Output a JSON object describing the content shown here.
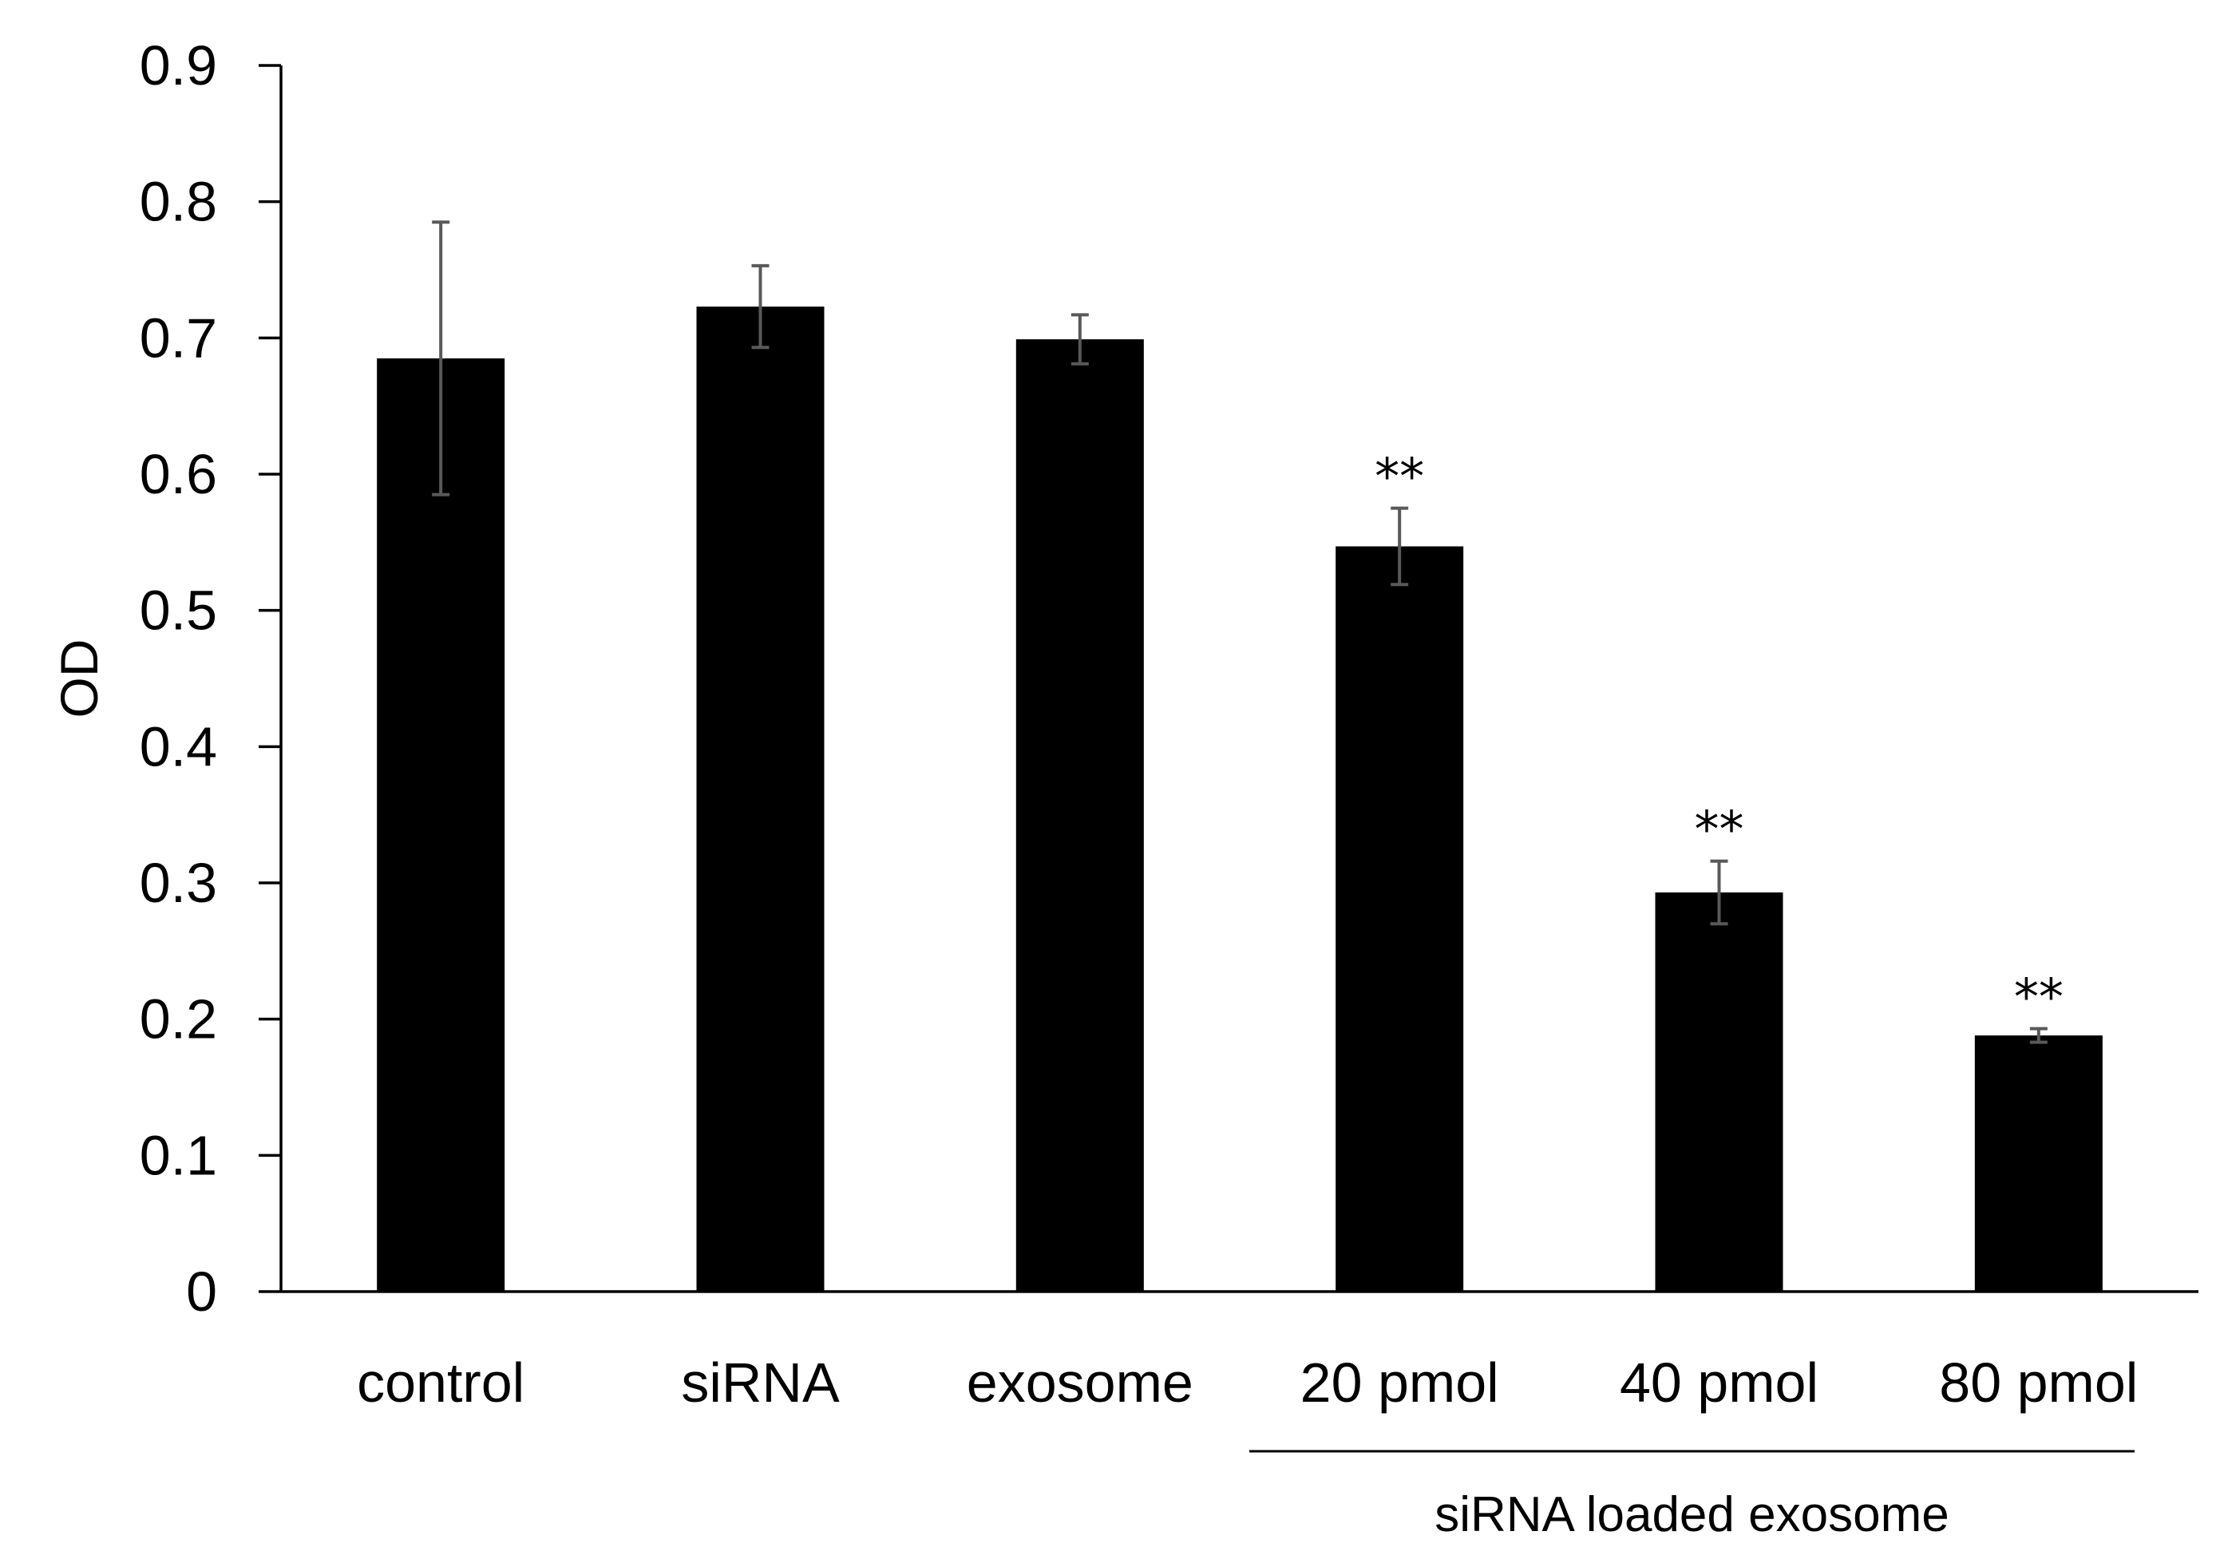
{
  "chart_data": {
    "type": "bar",
    "title": "",
    "xlabel": "",
    "ylabel": "OD",
    "ylim": [
      0,
      0.9
    ],
    "yticks": [
      "0",
      "0.1",
      "0.2",
      "0.3",
      "0.4",
      "0.5",
      "0.6",
      "0.7",
      "0.8",
      "0.9"
    ],
    "categories": [
      "control",
      "siRNA",
      "exosome",
      "20 pmol",
      "40 pmol",
      "80 pmol"
    ],
    "values": [
      0.685,
      0.723,
      0.699,
      0.547,
      0.293,
      0.188
    ],
    "errors": [
      0.1,
      0.03,
      0.018,
      0.028,
      0.023,
      0.005
    ],
    "significance": [
      "",
      "",
      "",
      "**",
      "**",
      "**"
    ],
    "group_annotation": {
      "label": "siRNA loaded exosome",
      "from_category": "20 pmol",
      "to_category": "80 pmol"
    },
    "bar_color": "#000000",
    "error_bar_color": "#595959",
    "grid": false,
    "legend": "none"
  }
}
